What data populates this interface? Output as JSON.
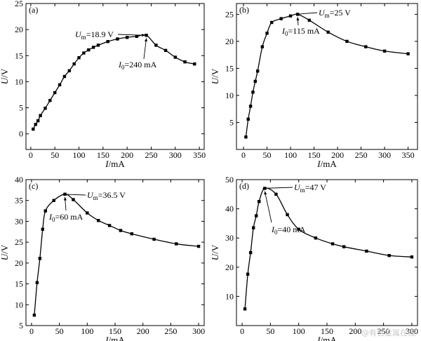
{
  "watermark": "@有色金属在线",
  "chart_data": [
    {
      "type": "line",
      "panel_label": "(a)",
      "xlabel_italic": "I",
      "xlabel_unit": "/mA",
      "ylabel_italic": "U",
      "ylabel_unit": "/V",
      "xlim": [
        -10,
        360
      ],
      "ylim": [
        -3,
        25
      ],
      "xticks": [
        0,
        50,
        100,
        150,
        200,
        250,
        300,
        350
      ],
      "yticks": [
        0,
        5,
        10,
        15,
        20,
        25
      ],
      "x": [
        5,
        10,
        15,
        20,
        30,
        40,
        50,
        60,
        70,
        80,
        90,
        100,
        110,
        120,
        130,
        140,
        160,
        180,
        200,
        220,
        240,
        260,
        280,
        300,
        320,
        340
      ],
      "y": [
        0.9,
        1.8,
        2.5,
        3.5,
        4.9,
        6.4,
        7.9,
        9.4,
        11.0,
        12.1,
        13.4,
        14.6,
        15.5,
        16.1,
        16.6,
        17.0,
        17.7,
        18.2,
        18.5,
        18.7,
        18.9,
        17.0,
        16.0,
        14.7,
        13.8,
        13.4
      ],
      "peak": {
        "x": 240,
        "y": 18.9
      },
      "anno_um_name": "U",
      "anno_um_sub": "m",
      "anno_um_value": "=18.9 V",
      "anno_i0_name": "I",
      "anno_i0_sub": "0",
      "anno_i0_value": "=240 mA"
    },
    {
      "type": "line",
      "panel_label": "(b)",
      "xlabel_italic": "I",
      "xlabel_unit": "/mA",
      "ylabel_italic": "U",
      "ylabel_unit": "/V",
      "xlim": [
        -15,
        370
      ],
      "ylim": [
        0,
        27
      ],
      "xticks": [
        0,
        50,
        100,
        150,
        200,
        250,
        300,
        350
      ],
      "yticks": [
        5,
        10,
        15,
        20,
        25
      ],
      "x": [
        5,
        10,
        15,
        20,
        25,
        30,
        40,
        50,
        60,
        80,
        100,
        115,
        140,
        180,
        220,
        260,
        300,
        350
      ],
      "y": [
        2.3,
        5.6,
        8.0,
        10.6,
        12.6,
        14.5,
        19.0,
        21.5,
        23.5,
        24.2,
        24.7,
        25.0,
        23.9,
        21.7,
        20.0,
        19.0,
        18.2,
        17.7
      ],
      "peak": {
        "x": 115,
        "y": 25
      },
      "anno_um_name": "U",
      "anno_um_sub": "m",
      "anno_um_value": "=25 V",
      "anno_i0_name": "I",
      "anno_i0_sub": "0",
      "anno_i0_value": "=115 mA"
    },
    {
      "type": "line",
      "panel_label": "(c)",
      "xlabel_italic": "I",
      "xlabel_unit": "/mA",
      "ylabel_italic": "U",
      "ylabel_unit": "/V",
      "xlim": [
        -10,
        310
      ],
      "ylim": [
        5,
        40
      ],
      "xticks": [
        0,
        50,
        100,
        150,
        200,
        250,
        300
      ],
      "yticks": [
        5,
        10,
        15,
        20,
        25,
        30,
        35,
        40
      ],
      "x": [
        5,
        10,
        15,
        20,
        25,
        40,
        60,
        75,
        100,
        120,
        140,
        160,
        180,
        220,
        260,
        300
      ],
      "y": [
        7.5,
        15.3,
        21.1,
        28.1,
        32.5,
        35.0,
        36.5,
        35.2,
        32.0,
        30.2,
        29.0,
        27.8,
        27.0,
        25.7,
        24.6,
        24.0
      ],
      "peak": {
        "x": 60,
        "y": 36.5
      },
      "anno_um_name": "U",
      "anno_um_sub": "m",
      "anno_um_value": "=36.5 V",
      "anno_i0_name": "I",
      "anno_i0_sub": "0",
      "anno_i0_value": "=60 mA"
    },
    {
      "type": "line",
      "panel_label": "(d)",
      "xlabel_italic": "I",
      "xlabel_unit": "/mA",
      "ylabel_italic": "U",
      "ylabel_unit": "/V",
      "xlim": [
        -10,
        310
      ],
      "ylim": [
        0,
        50
      ],
      "xticks": [
        0,
        50,
        100,
        150,
        200,
        250,
        300
      ],
      "yticks": [
        10,
        20,
        30,
        40,
        50
      ],
      "x": [
        5,
        10,
        15,
        20,
        25,
        30,
        40,
        60,
        80,
        100,
        130,
        160,
        180,
        220,
        260,
        300
      ],
      "y": [
        5.7,
        17.6,
        25.0,
        33.5,
        37.6,
        42.5,
        47.0,
        45.0,
        38.0,
        33.0,
        30.0,
        28.0,
        27.0,
        25.5,
        24.0,
        23.5
      ],
      "peak": {
        "x": 40,
        "y": 47
      },
      "anno_um_name": "U",
      "anno_um_sub": "m",
      "anno_um_value": "=47 V",
      "anno_i0_name": "I",
      "anno_i0_sub": "0",
      "anno_i0_value": "=40 mA"
    }
  ]
}
